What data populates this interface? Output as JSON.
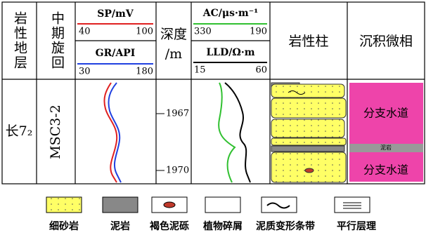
{
  "header": {
    "stratigraphy": "岩性地层",
    "cycle": "中期旋回",
    "sp": {
      "label": "SP/mV",
      "left": "40",
      "right": "100"
    },
    "gr": {
      "label": "GR/API",
      "left": "30",
      "right": "180"
    },
    "depth": {
      "title": "深度",
      "unit": "/m"
    },
    "ac": {
      "label": "AC/μs·m⁻¹",
      "left": "330",
      "right": "190"
    },
    "lld": {
      "label": "LLD/Ω·m",
      "left": "15",
      "right": "60"
    },
    "lithology": "岩性柱",
    "facies": "沉积微相"
  },
  "body": {
    "stratigraphy": "长7₂",
    "cycle": "MSC3-2",
    "depths": [
      "1967",
      "1970"
    ],
    "facies": [
      "分支水道",
      "泥岩",
      "分支水道"
    ]
  },
  "legend": [
    "细砂岩",
    "泥岩",
    "褐色泥砾",
    "植物碎屑",
    "泥质变形条带",
    "平行层理"
  ]
}
